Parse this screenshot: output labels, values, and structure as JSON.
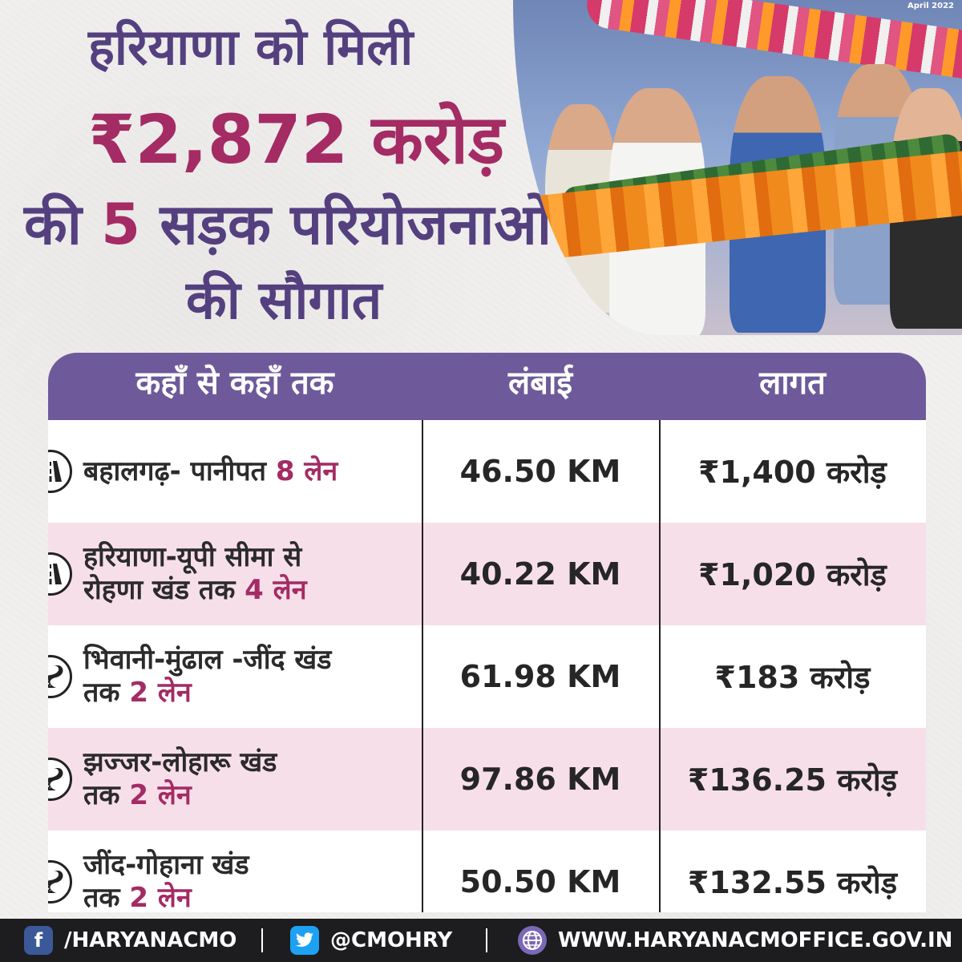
{
  "headline": {
    "line1": "हरियाणा को मिली",
    "line2": "₹2,872 करोड़",
    "line3_prefix": "की",
    "line3_number": "5",
    "line3_suffix": "सड़क परियोजनाओं",
    "line4": "की सौगात"
  },
  "photo": {
    "date_label": "April 2022"
  },
  "table": {
    "headers": {
      "route": "कहाँ से कहाँ तक",
      "length": "लंबाई",
      "cost": "लागत"
    },
    "rows": [
      {
        "icon": "highway-icon",
        "route_a": "बहालगढ़- पानीपत",
        "route_b": "",
        "lane": "8 लेन",
        "length": "46.50 KM",
        "cost": "₹1,400 करोड़"
      },
      {
        "icon": "highway-icon",
        "route_a": "हरियाणा-यूपी सीमा से",
        "route_b": "रोहणा खंड तक",
        "lane": "4 लेन",
        "length": "40.22 KM",
        "cost": "₹1,020 करोड़"
      },
      {
        "icon": "curvy-road-icon",
        "route_a": "भिवानी-मुंढाल -जींद खंड",
        "route_b": "तक",
        "lane": "2 लेन",
        "length": "61.98 KM",
        "cost": "₹183 करोड़"
      },
      {
        "icon": "curvy-road-icon",
        "route_a": "झज्जर-लोहारू खंड",
        "route_b": "तक",
        "lane": "2 लेन",
        "length": "97.86 KM",
        "cost": "₹136.25 करोड़"
      },
      {
        "icon": "curvy-road-icon",
        "route_a": "जींद-गोहाना खंड",
        "route_b": "तक",
        "lane": "2 लेन",
        "length": "50.50 KM",
        "cost": "₹132.55 करोड़"
      }
    ]
  },
  "footer": {
    "facebook": "/HARYANACMO",
    "twitter": "@CMOHRY",
    "website": "WWW.HARYANACMOFFICE.GOV.IN"
  },
  "colors": {
    "purple": "#54407f",
    "magenta": "#a42b64",
    "header_bg": "#6e5a9a",
    "row_alt": "#f7dfea",
    "footer_bg": "#1d1c1f"
  }
}
